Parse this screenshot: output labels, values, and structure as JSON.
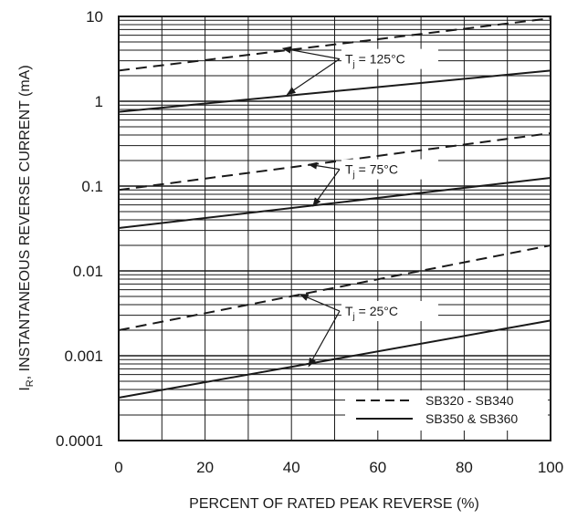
{
  "chart_data": {
    "type": "line",
    "xlabel": "PERCENT OF RATED PEAK REVERSE (%)",
    "ylabel_main": "I",
    "ylabel_sub": "R",
    "ylabel_rest": ", INSTANTANEOUS REVERSE CURRENT (mA)",
    "y_scale": "log",
    "xlim": [
      0,
      100
    ],
    "ylim": [
      0.0001,
      10
    ],
    "grid": true,
    "legend_position": "bottom-right",
    "x_ticks": [
      "0",
      "20",
      "40",
      "60",
      "80",
      "100"
    ],
    "y_ticks": [
      "10",
      "1",
      "0.1",
      "0.01",
      "0.001",
      "0.0001"
    ],
    "series": [
      {
        "name": "SB320 - SB340",
        "style": "dashed",
        "temperature": "T_j = 125°C",
        "x": [
          0,
          100
        ],
        "y": [
          2.3,
          9.5
        ]
      },
      {
        "name": "SB350 & SB360",
        "style": "solid",
        "temperature": "T_j = 125°C",
        "x": [
          0,
          100
        ],
        "y": [
          0.75,
          2.3
        ]
      },
      {
        "name": "SB320 - SB340",
        "style": "dashed",
        "temperature": "T_j = 75°C",
        "x": [
          0,
          100
        ],
        "y": [
          0.09,
          0.42
        ]
      },
      {
        "name": "SB350 & SB360",
        "style": "solid",
        "temperature": "T_j = 75°C",
        "x": [
          0,
          100
        ],
        "y": [
          0.032,
          0.125
        ]
      },
      {
        "name": "SB320 - SB340",
        "style": "dashed",
        "temperature": "T_j = 25°C",
        "x": [
          0,
          100
        ],
        "y": [
          0.002,
          0.02
        ]
      },
      {
        "name": "SB350 & SB360",
        "style": "solid",
        "temperature": "T_j = 25°C",
        "x": [
          0,
          100
        ],
        "y": [
          0.00032,
          0.0026
        ]
      }
    ],
    "annotations": [
      {
        "main": "T",
        "sub": "j",
        "rest": " = 125°C",
        "label_at": [
          52,
          3.0
        ],
        "arrows_to": [
          [
            38,
            4.2
          ],
          [
            39,
            1.2
          ]
        ]
      },
      {
        "main": "T",
        "sub": "j",
        "rest": " = 75°C",
        "label_at": [
          52,
          0.15
        ],
        "arrows_to": [
          [
            44,
            0.18
          ],
          [
            45,
            0.058
          ]
        ]
      },
      {
        "main": "T",
        "sub": "j",
        "rest": " = 25°C",
        "label_at": [
          52,
          0.0032
        ],
        "arrows_to": [
          [
            42,
            0.0053
          ],
          [
            44,
            0.00075
          ]
        ]
      }
    ],
    "legend": [
      {
        "label": "SB320 - SB340",
        "style": "dashed"
      },
      {
        "label": "SB350 & SB360",
        "style": "solid"
      }
    ]
  }
}
